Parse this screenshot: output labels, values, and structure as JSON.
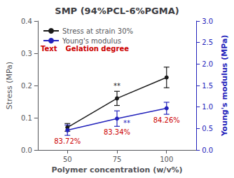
{
  "chart_data": {
    "type": "line",
    "title": "SMP (94%PCL-6%PGMA)",
    "xlabel": "Polymer concentration (w/v%)",
    "ylabel": "Stress (MPa)",
    "y2label": "Young's modulus (MPa)",
    "x": [
      50,
      75,
      100
    ],
    "xlim": [
      35,
      115
    ],
    "xticks": [
      50,
      75,
      100
    ],
    "ylim": [
      0.0,
      0.4
    ],
    "yticks": [
      {
        "value": 0,
        "label": "0.0"
      },
      0.1,
      0.2,
      0.3,
      0.4
    ],
    "y2lim": [
      0.0,
      3.0
    ],
    "y2ticks": [
      {
        "value": 0,
        "label": "0.0"
      },
      0.5,
      {
        "value": 1,
        "label": "1.0"
      },
      1.5,
      {
        "value": 2,
        "label": "2.0"
      },
      2.5,
      {
        "value": 3,
        "label": "3.0"
      }
    ],
    "grid": false,
    "legend": "upper left",
    "marker": "circle",
    "series": [
      {
        "name": "Stress at strain 30%",
        "color": "#1a1a1a",
        "values": [
          0.07,
          0.16,
          0.225
        ],
        "yerr": [
          0.012,
          0.022,
          0.032
        ]
      },
      {
        "name": "Young's modulus",
        "color": "#2222bb",
        "axis": "y2",
        "values": [
          0.46,
          0.73,
          0.97
        ],
        "yerr": [
          0.12,
          0.18,
          0.14
        ]
      }
    ],
    "annotations": [
      {
        "text": "**",
        "x": 75,
        "series": "Stress at strain 30%",
        "position": "above",
        "color": "#1a1a1a"
      },
      {
        "text": "**",
        "x": 75,
        "series": "Young's modulus",
        "position": "right",
        "color": "#2222bb"
      },
      {
        "text": "83.72%",
        "x": 50,
        "series": "Young's modulus",
        "position": "below",
        "color": "#cc0000"
      },
      {
        "text": "83.34%",
        "x": 75,
        "series": "Young's modulus",
        "position": "below",
        "color": "#cc0000"
      },
      {
        "text": "84.26%",
        "x": 100,
        "series": "Young's modulus",
        "position": "below",
        "color": "#cc0000"
      },
      {
        "text": "Text",
        "color": "#cc0000"
      },
      {
        "text": "Gelation degree",
        "color": "#cc0000"
      }
    ]
  }
}
